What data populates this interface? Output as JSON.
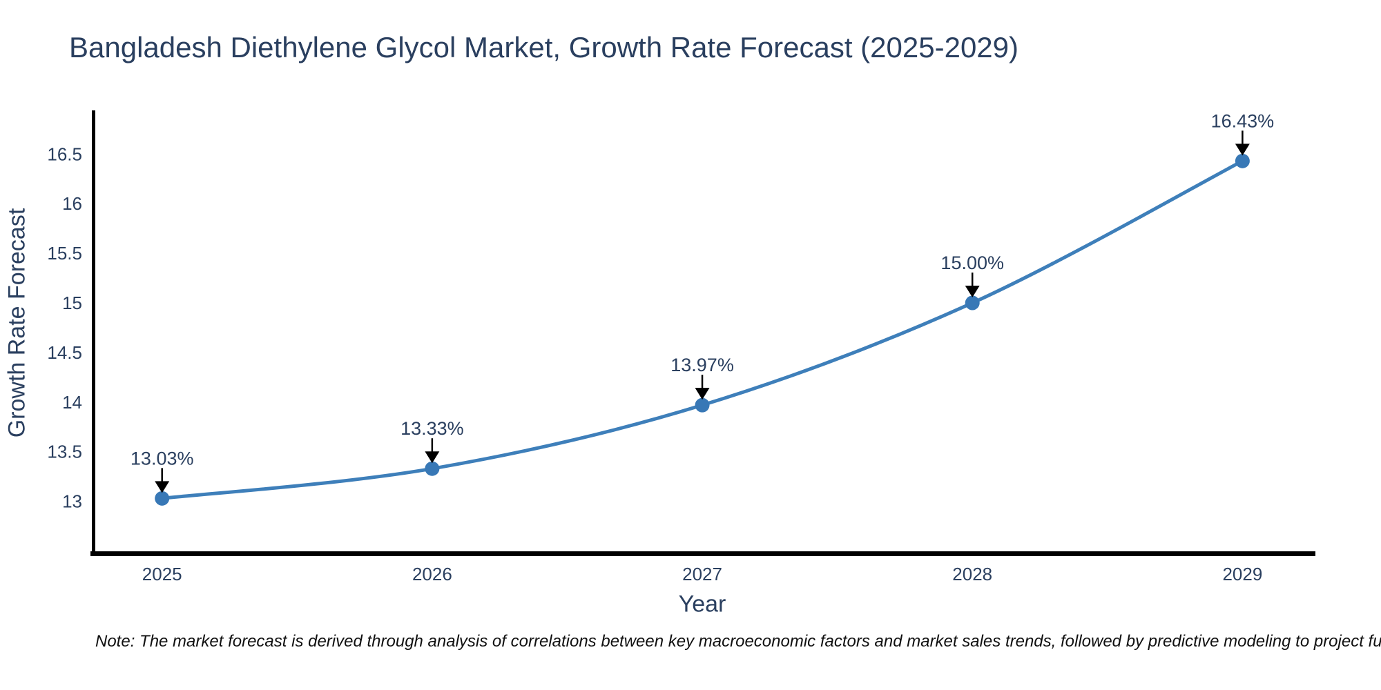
{
  "chart_data": {
    "type": "line",
    "title": "Bangladesh Diethylene Glycol Market, Growth Rate Forecast (2025-2029)",
    "xlabel": "Year",
    "ylabel": "Growth Rate Forecast",
    "x": [
      2025,
      2026,
      2027,
      2028,
      2029
    ],
    "values": [
      13.03,
      13.33,
      13.97,
      15.0,
      16.43
    ],
    "point_labels": [
      "13.03%",
      "13.33%",
      "13.97%",
      "15.00%",
      "16.43%"
    ],
    "x_tick_labels": [
      "2025",
      "2026",
      "2027",
      "2028",
      "2029"
    ],
    "y_ticks": [
      13,
      13.5,
      14,
      14.5,
      15,
      15.5,
      16,
      16.5
    ],
    "y_tick_labels": [
      "13",
      "13.5",
      "14",
      "14.5",
      "15",
      "15.5",
      "16",
      "16.5"
    ],
    "xlim": [
      2024.74,
      2029.27
    ],
    "ylim": [
      12.49,
      16.94
    ],
    "grid": false,
    "legend": null,
    "line_shape": "spline",
    "annotations_have_arrows": true,
    "colors": {
      "line": "#3e7fba",
      "marker": "#3878b6",
      "axis": "#000000",
      "text": "#2a3f5f",
      "arrow": "#000000"
    }
  },
  "note": "Note: The market forecast is derived through analysis of correlations between key macroeconomic factors and market sales trends, followed by predictive modeling to project future sal"
}
